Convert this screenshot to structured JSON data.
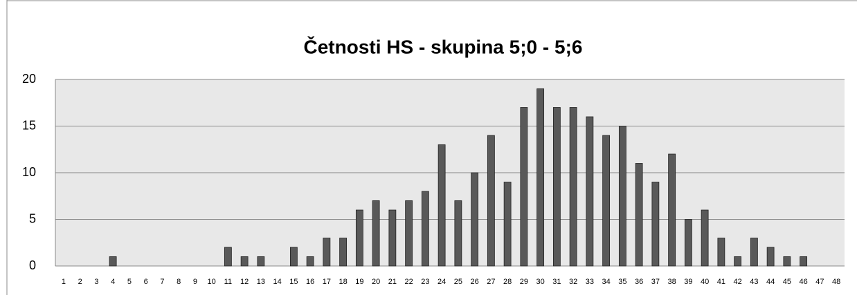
{
  "chart_data": {
    "type": "bar",
    "title": "Četnosti HS - skupina 5;0 - 5;6",
    "categories": [
      "1",
      "2",
      "3",
      "4",
      "5",
      "6",
      "7",
      "8",
      "9",
      "10",
      "11",
      "12",
      "13",
      "14",
      "15",
      "16",
      "17",
      "18",
      "19",
      "20",
      "21",
      "22",
      "23",
      "24",
      "25",
      "26",
      "27",
      "28",
      "29",
      "30",
      "31",
      "32",
      "33",
      "34",
      "35",
      "36",
      "37",
      "38",
      "39",
      "40",
      "41",
      "42",
      "43",
      "44",
      "45",
      "46",
      "47",
      "48"
    ],
    "values": [
      0,
      0,
      0,
      1,
      0,
      0,
      0,
      0,
      0,
      0,
      2,
      1,
      1,
      0,
      2,
      1,
      3,
      3,
      6,
      7,
      6,
      7,
      8,
      13,
      7,
      10,
      14,
      9,
      17,
      19,
      17,
      17,
      16,
      14,
      15,
      11,
      9,
      12,
      5,
      6,
      3,
      1,
      3,
      2,
      1,
      1,
      0,
      0
    ],
    "color": "#595959",
    "ylim": [
      0,
      20
    ],
    "yticks": [
      0,
      5,
      10,
      15,
      20
    ],
    "grid": true
  }
}
